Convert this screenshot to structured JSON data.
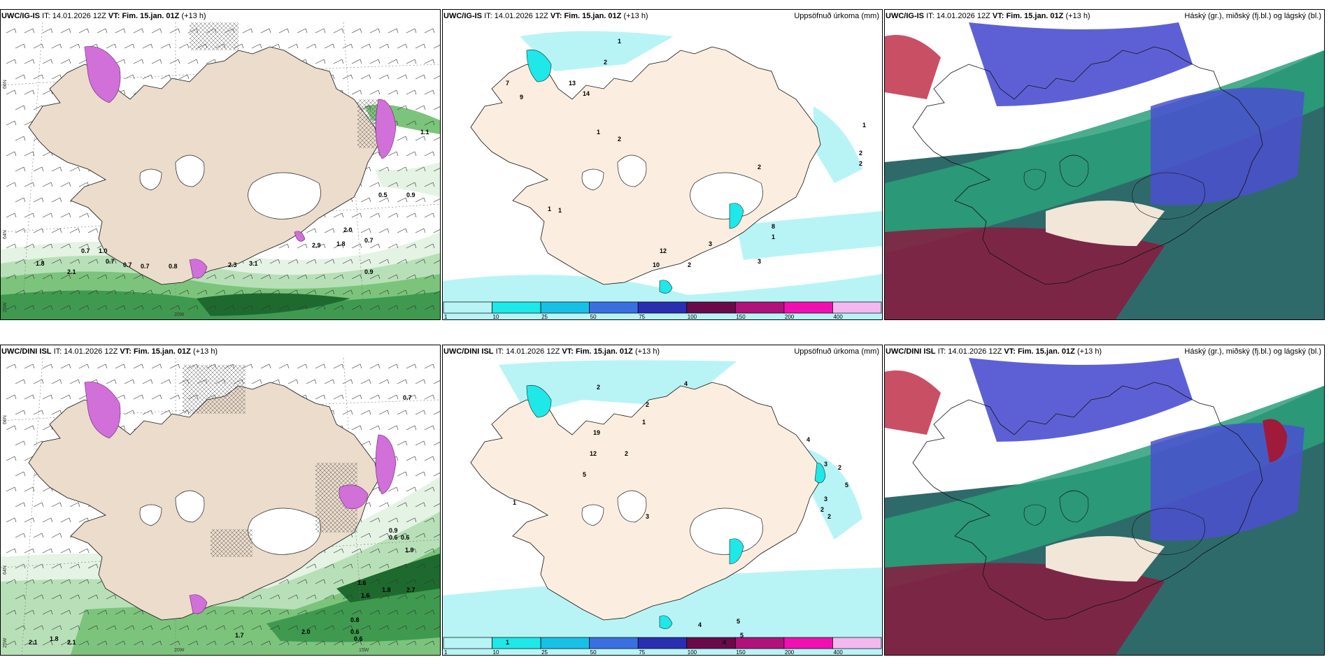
{
  "panels": [
    {
      "id": "p1",
      "model": "UWC/IG-IS",
      "it_label": "IT:",
      "it": "14.01.2026 12Z",
      "vt_label": "VT:",
      "vt": "Fim. 15.jan. 01Z",
      "lead": "(+13 h)",
      "right_title": "",
      "type": "wind"
    },
    {
      "id": "p2",
      "model": "UWC/IG-IS",
      "it_label": "IT:",
      "it": "14.01.2026 12Z",
      "vt_label": "VT:",
      "vt": "Fim. 15.jan. 01Z",
      "lead": "(+13 h)",
      "right_title": "Uppsöfnuð úrkoma (mm)",
      "type": "precip"
    },
    {
      "id": "p3",
      "model": "UWC/IG-IS",
      "it_label": "IT:",
      "it": "14.01.2026 12Z",
      "vt_label": "VT:",
      "vt": "Fim. 15.jan. 01Z",
      "lead": "(+13 h)",
      "right_title": "Háský (gr.), miðský (fj.bl.) og lágský (bl.)",
      "type": "cloud"
    },
    {
      "id": "p4",
      "model": "UWC/DINI ISL",
      "it_label": "IT:",
      "it": "14.01.2026 12Z",
      "vt_label": "VT:",
      "vt": "Fim. 15.jan. 01Z",
      "lead": "(+13 h)",
      "right_title": "",
      "type": "wind"
    },
    {
      "id": "p5",
      "model": "UWC/DINI ISL",
      "it_label": "IT:",
      "it": "14.01.2026 12Z",
      "vt_label": "VT:",
      "vt": "Fim. 15.jan. 01Z",
      "lead": "(+13 h)",
      "right_title": "Uppsöfnuð úrkoma (mm)",
      "type": "precip"
    },
    {
      "id": "p6",
      "model": "UWC/DINI ISL",
      "it_label": "IT:",
      "it": "14.01.2026 12Z",
      "vt_label": "VT:",
      "vt": "Fim. 15.jan. 01Z",
      "lead": "(+13 h)",
      "right_title": "Háský (gr.), miðský (fj.bl.) og lágský (bl.)",
      "type": "cloud"
    }
  ],
  "axis_labels": {
    "lat66": "66N",
    "lat64": "64N",
    "lon25": "25W",
    "lon20": "20W",
    "lon15": "15W"
  },
  "precip_legend": {
    "ticks": [
      "1",
      "10",
      "25",
      "50",
      "75",
      "100",
      "150",
      "200",
      "400"
    ],
    "colors": [
      "#b8f4f6",
      "#1ee8e8",
      "#19c0e6",
      "#3a6fe0",
      "#2a2fb0",
      "#6a0a4a",
      "#b0127a",
      "#f010b0",
      "#f4b8f0"
    ]
  },
  "wind_labels_top": [
    "0.5",
    "0.9",
    "0.7",
    "1.0",
    "0.7",
    "0.7",
    "0.7",
    "0.8",
    "2.3",
    "3.1",
    "2.9",
    "1.8",
    "2.0",
    "0.7",
    "0.9",
    "1.1",
    "2.1",
    "1.8"
  ],
  "wind_labels_bottom": [
    "0.7",
    "0.9",
    "0.6",
    "0.6",
    "1.9",
    "1.8",
    "2.7",
    "1.6",
    "1.6",
    "0.8",
    "0.6",
    "0.6",
    "1.7",
    "2.0",
    "1.8",
    "2.1",
    "2.1"
  ],
  "precip_labels_top": [
    "1",
    "2",
    "7",
    "13",
    "14",
    "9",
    "1",
    "2",
    "2",
    "1",
    "2",
    "8",
    "1",
    "2",
    "3",
    "12",
    "3",
    "2",
    "10",
    "1",
    "1"
  ],
  "precip_labels_bottom": [
    "2",
    "4",
    "2",
    "1",
    "19",
    "12",
    "2",
    "5",
    "3",
    "4",
    "3",
    "2",
    "5",
    "4",
    "5",
    "5",
    "1",
    "4",
    "1",
    "3",
    "2",
    "2"
  ]
}
